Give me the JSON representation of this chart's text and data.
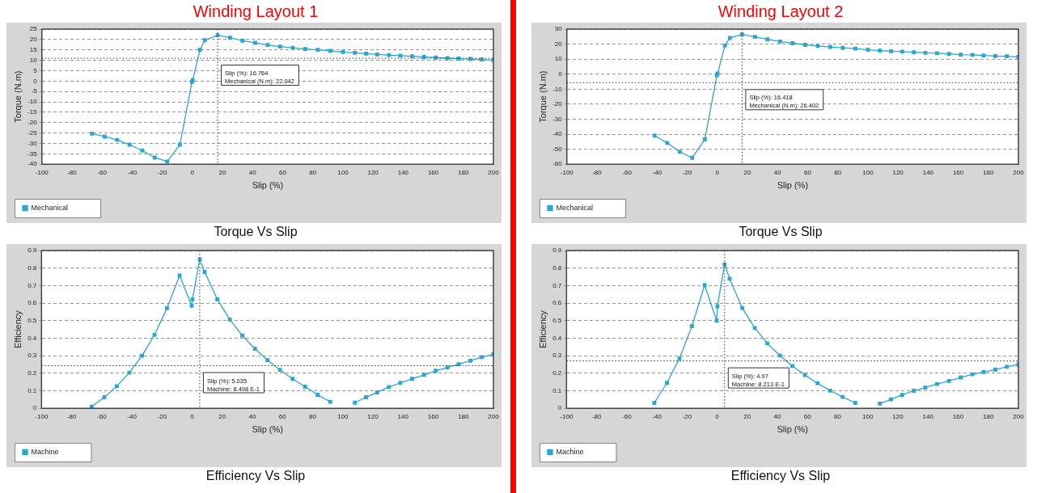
{
  "chart_data": [
    {
      "type": "line",
      "title": "Winding Layout 1",
      "xlabel": "Slip (%)",
      "ylabel": "Torque (N.m)",
      "xlim": [
        -100,
        200
      ],
      "xticks": [
        -100,
        -80,
        -60,
        -40,
        -20,
        0,
        20,
        40,
        60,
        80,
        100,
        120,
        140,
        160,
        180,
        200
      ],
      "ylim": [
        -40,
        25
      ],
      "yticks": [
        -40,
        -35,
        -30,
        -25,
        -20,
        -15,
        -10,
        -5,
        0,
        5,
        10,
        15,
        20,
        25
      ],
      "grid": "y",
      "legend": "bottom left",
      "marker": "square",
      "series": [
        {
          "name": "Mechanical",
          "color": "#2aa6d2",
          "x": [
            -66.7,
            -58.3,
            -50,
            -41.7,
            -33.3,
            -25,
            -16.7,
            -8.3,
            -0.3,
            0.2,
            5,
            8.3,
            16.764,
            25,
            33.3,
            41.7,
            50,
            58.3,
            66.7,
            75,
            83.3,
            91.7,
            100,
            108,
            115.4,
            122.8,
            130.6,
            138.2,
            146,
            153.9,
            161.7,
            169.5,
            176.9,
            184.7,
            192.3,
            200
          ],
          "values": [
            -25.3,
            -26.7,
            -28.3,
            -30.6,
            -33.4,
            -36.8,
            -38.7,
            -30.6,
            -0.4,
            0.4,
            15,
            19.7,
            22.042,
            20.9,
            19.4,
            18.4,
            17.4,
            16.6,
            16,
            15.4,
            15,
            14.5,
            14,
            13.6,
            13.2,
            12.8,
            12.5,
            12.2,
            11.9,
            11.6,
            11.3,
            11,
            10.8,
            10.6,
            10.4,
            10.1
          ]
        }
      ],
      "ref_lines": [
        {
          "axis": "x",
          "value": 16.764,
          "line_style": "dotted",
          "color": "#333333"
        },
        {
          "axis": "y",
          "value": 11,
          "line_style": "dotted",
          "color": "#333333"
        }
      ],
      "annotations": [
        "Torque Vs Slip",
        "Slip (%): 16.764",
        "Mechanical (N.m): 22.042"
      ]
    },
    {
      "type": "line",
      "title": "Winding Layout 2",
      "xlabel": "Slip (%)",
      "ylabel": "Torque (N.m)",
      "xlim": [
        -100,
        200
      ],
      "xticks": [
        -100,
        -80,
        -60,
        -40,
        -20,
        0,
        20,
        40,
        60,
        80,
        100,
        120,
        140,
        160,
        180,
        200
      ],
      "ylim": [
        -60,
        30
      ],
      "yticks": [
        -60,
        -50,
        -40,
        -30,
        -20,
        -10,
        0,
        10,
        20,
        30
      ],
      "grid": "y",
      "legend": "bottom left",
      "marker": "square",
      "series": [
        {
          "name": "Mechanical",
          "color": "#2aa6d2",
          "x": [
            -41.7,
            -33.3,
            -25,
            -16.7,
            -8.3,
            -0.3,
            0.2,
            5,
            8.3,
            16.418,
            25,
            33.3,
            41.7,
            50,
            58.3,
            66.7,
            75,
            83.3,
            91.7,
            100,
            108,
            115.4,
            122.8,
            130.6,
            138.2,
            146,
            153.9,
            161.7,
            169.5,
            176.9,
            184.7,
            192.3,
            200
          ],
          "values": [
            -40.9,
            -45.8,
            -51.7,
            -55.7,
            -43.4,
            -0.7,
            0.5,
            19,
            24.1,
            26.402,
            24.8,
            23.2,
            21.7,
            20.6,
            19.5,
            18.8,
            18.1,
            17.5,
            17,
            16.2,
            15.7,
            15.3,
            15,
            14.6,
            14.2,
            13.9,
            13.5,
            13,
            12.8,
            12.4,
            12,
            11.9,
            11.5
          ]
        }
      ],
      "ref_lines": [
        {
          "axis": "x",
          "value": 16.418,
          "line_style": "dotted",
          "color": "#333333"
        },
        {
          "axis": "y",
          "value": -5.7,
          "line_style": "dotted",
          "color": "#333333"
        }
      ],
      "annotations": [
        "Torque Vs Slip",
        "Slip (%): 16.418",
        "Mechanical (N.m): 26.402"
      ]
    },
    {
      "type": "line",
      "xlabel": "Slip (%)",
      "ylabel": "Efficiency",
      "xlim": [
        -100,
        200
      ],
      "xticks": [
        -100,
        -80,
        -60,
        -40,
        -20,
        0,
        20,
        40,
        60,
        80,
        100,
        120,
        140,
        160,
        180,
        200
      ],
      "ylim": [
        0,
        0.9
      ],
      "yticks": [
        0,
        0.1,
        0.2,
        0.3,
        0.4,
        0.5,
        0.6,
        0.7,
        0.8,
        0.9
      ],
      "grid": "y",
      "legend": "bottom left",
      "marker": "square",
      "series": [
        {
          "name": "Machine",
          "color": "#2aa6d2",
          "x": [
            -66.7,
            -58.3,
            -50,
            -41.7,
            -33.3,
            -25,
            -16.7,
            -8.3,
            -0.3,
            0.2,
            5.035,
            8.3,
            16.7,
            25,
            33.3,
            41.7,
            50,
            58.3,
            66.7,
            75,
            83.3,
            91.7,
            100,
            108,
            115.4,
            122.8,
            130.6,
            138.2,
            146,
            153.9,
            161.7,
            169.5,
            176.9,
            184.7,
            192.3,
            200
          ],
          "values": [
            0.009,
            0.063,
            0.126,
            0.203,
            0.3,
            0.419,
            0.571,
            0.757,
            0.585,
            0.622,
            0.8498,
            0.778,
            0.622,
            0.506,
            0.415,
            0.34,
            0.275,
            0.219,
            0.168,
            0.123,
            0.077,
            0.037,
            null,
            0.032,
            0.063,
            0.091,
            0.121,
            0.145,
            0.168,
            0.191,
            0.214,
            0.233,
            0.252,
            0.271,
            0.292,
            0.308
          ]
        }
      ],
      "ref_lines": [
        {
          "axis": "x",
          "value": 5.035,
          "line_style": "dotted",
          "color": "#333333"
        },
        {
          "axis": "y",
          "value": 0.243,
          "line_style": "dotted",
          "color": "#333333"
        }
      ],
      "annotations": [
        "Efficiency Vs Slip",
        "Slip (%): 5.035",
        "Machine: 8.498 E-1"
      ]
    },
    {
      "type": "line",
      "xlabel": "Slip (%)",
      "ylabel": "Efficiency",
      "xlim": [
        -100,
        200
      ],
      "xticks": [
        -100,
        -80,
        -60,
        -40,
        -20,
        0,
        20,
        40,
        60,
        80,
        100,
        120,
        140,
        160,
        180,
        200
      ],
      "ylim": [
        0,
        0.9
      ],
      "yticks": [
        0,
        0.1,
        0.2,
        0.3,
        0.4,
        0.5,
        0.6,
        0.7,
        0.8,
        0.9
      ],
      "grid": "y",
      "legend": "bottom left",
      "marker": "square",
      "series": [
        {
          "name": "Machine",
          "color": "#2aa6d2",
          "x": [
            -41.7,
            -33.3,
            -25,
            -16.7,
            -8.3,
            -0.3,
            0.2,
            4.97,
            8.3,
            16.7,
            25,
            33.3,
            41.7,
            50,
            58.3,
            66.7,
            75,
            83.3,
            91.7,
            100,
            108,
            115.4,
            122.8,
            130.6,
            138.2,
            146,
            153.9,
            161.7,
            169.5,
            176.9,
            184.7,
            192.3,
            200
          ],
          "values": [
            0.031,
            0.145,
            0.284,
            0.469,
            0.703,
            0.5,
            0.582,
            0.8213,
            0.739,
            0.572,
            0.458,
            0.37,
            0.301,
            0.241,
            0.19,
            0.143,
            0.101,
            0.065,
            0.031,
            null,
            0.027,
            0.051,
            0.076,
            0.1,
            0.118,
            0.139,
            0.156,
            0.176,
            0.194,
            0.207,
            0.221,
            0.237,
            0.25
          ]
        }
      ],
      "ref_lines": [
        {
          "axis": "x",
          "value": 4.97,
          "line_style": "dotted",
          "color": "#333333"
        },
        {
          "axis": "y",
          "value": 0.27,
          "line_style": "dotted",
          "color": "#333333"
        }
      ],
      "annotations": [
        "Efficiency Vs Slip",
        "Slip (%): 4.97",
        "Machine: 8.213 E-1"
      ]
    }
  ]
}
